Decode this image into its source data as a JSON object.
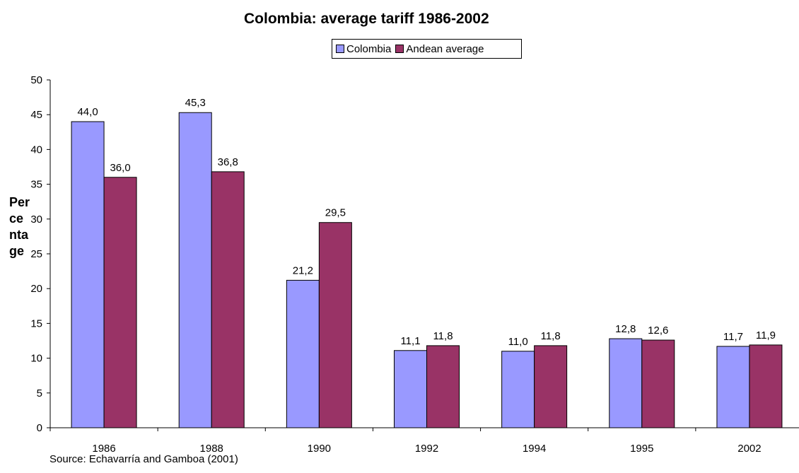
{
  "chart_data": {
    "type": "bar",
    "title": "Colombia: average tariff 1986-2002",
    "ylabel": "Percentage",
    "xlabel": "",
    "categories": [
      "1986",
      "1988",
      "1990",
      "1992",
      "1994",
      "1995",
      "2002"
    ],
    "series": [
      {
        "name": "Colombia",
        "color": "#9999ff",
        "values": [
          44.0,
          45.3,
          21.2,
          11.1,
          11.0,
          12.8,
          11.7
        ],
        "labels": [
          "44,0",
          "45,3",
          "21,2",
          "11,1",
          "11,0",
          "12,8",
          "11,7"
        ]
      },
      {
        "name": "Andean average",
        "color": "#993366",
        "values": [
          36.0,
          36.8,
          29.5,
          11.8,
          11.8,
          12.6,
          11.9
        ],
        "labels": [
          "36,0",
          "36,8",
          "29,5",
          "11,8",
          "11,8",
          "12,6",
          "11,9"
        ]
      }
    ],
    "ylim": [
      0,
      50
    ],
    "yticks": [
      "0",
      "5",
      "10",
      "15",
      "20",
      "25",
      "30",
      "35",
      "40",
      "45",
      "50"
    ],
    "grid": false,
    "legend_position": "top"
  },
  "source": "Source: Echavarría and Gamboa (2001)"
}
